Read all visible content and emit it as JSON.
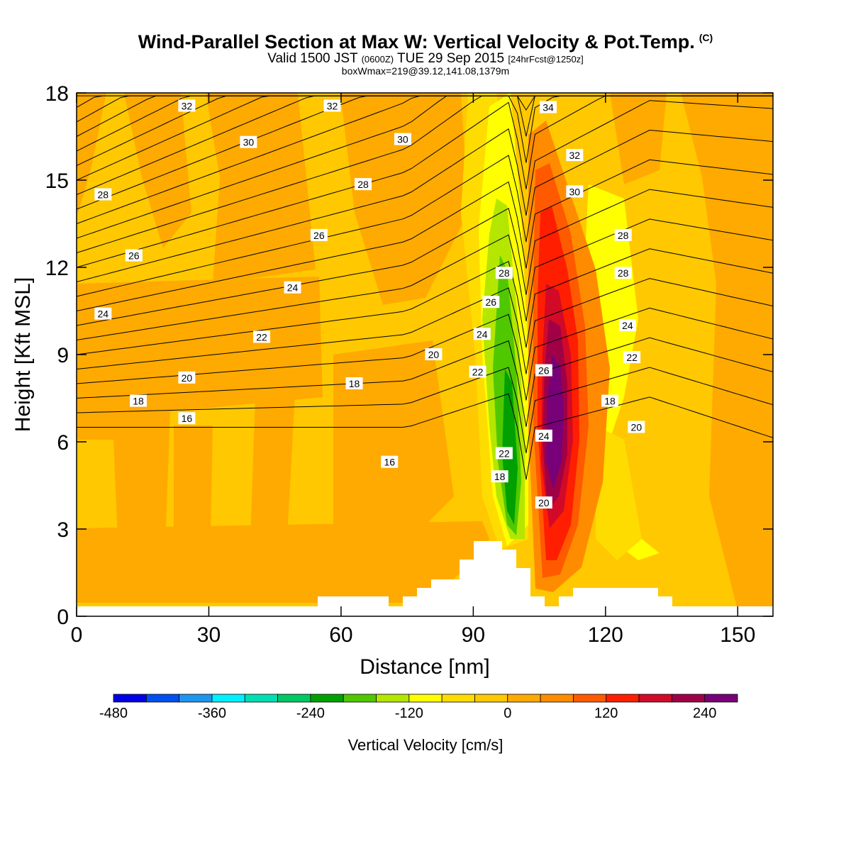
{
  "title": {
    "main": "Wind-Parallel Section at Max W: Vertical Velocity & Pot.Temp.",
    "copyright": "(C)",
    "valid_prefix": "Valid 1500 JST",
    "valid_utc": "(0600Z)",
    "valid_date": "TUE 29 Sep 2015",
    "forecast": "[24hrFcst@1250z]",
    "subtitle": "boxWmax=219@39.12,141.08,1379m"
  },
  "chart_data": {
    "type": "heatmap",
    "description_type": "vertical cross-section contour",
    "xlabel": "Distance [nm]",
    "ylabel": "Height [Kft MSL]",
    "xlim": [
      0,
      158
    ],
    "ylim": [
      0,
      18
    ],
    "x_ticks": [
      0,
      30,
      60,
      90,
      120,
      150
    ],
    "y_ticks": [
      0,
      3,
      6,
      9,
      12,
      15,
      18
    ],
    "colorbar": {
      "label": "Vertical Velocity [cm/s]",
      "tick_values": [
        -480,
        -360,
        -240,
        -120,
        0,
        120,
        240
      ],
      "bins": [
        -480,
        -440,
        -400,
        -360,
        -320,
        -280,
        -240,
        -200,
        -160,
        -120,
        -80,
        -40,
        0,
        40,
        80,
        120,
        160,
        200,
        240,
        280
      ],
      "colors": [
        "#0000e6",
        "#0050f0",
        "#1e96f0",
        "#00f0ff",
        "#00dfb4",
        "#00c864",
        "#00a000",
        "#50c800",
        "#b4e600",
        "#ffff00",
        "#ffdc00",
        "#ffc800",
        "#ffaa00",
        "#ff8c00",
        "#ff5a00",
        "#ff1e00",
        "#d20a28",
        "#a00046",
        "#780078"
      ]
    },
    "theta_contour_labels": [
      {
        "x": 25,
        "y": 17.55,
        "label": "32"
      },
      {
        "x": 58,
        "y": 17.55,
        "label": "32"
      },
      {
        "x": 107,
        "y": 17.5,
        "label": "34"
      },
      {
        "x": 39,
        "y": 16.3,
        "label": "30"
      },
      {
        "x": 74,
        "y": 16.4,
        "label": "30"
      },
      {
        "x": 113,
        "y": 15.85,
        "label": "32"
      },
      {
        "x": 6,
        "y": 14.5,
        "label": "28"
      },
      {
        "x": 65,
        "y": 14.85,
        "label": "28"
      },
      {
        "x": 113,
        "y": 14.6,
        "label": "30"
      },
      {
        "x": 55,
        "y": 13.1,
        "label": "26"
      },
      {
        "x": 124,
        "y": 13.1,
        "label": "28"
      },
      {
        "x": 13,
        "y": 12.4,
        "label": "26"
      },
      {
        "x": 97,
        "y": 11.8,
        "label": "28"
      },
      {
        "x": 124,
        "y": 11.8,
        "label": "28"
      },
      {
        "x": 49,
        "y": 11.3,
        "label": "24"
      },
      {
        "x": 94,
        "y": 10.8,
        "label": "26"
      },
      {
        "x": 6,
        "y": 10.4,
        "label": "24"
      },
      {
        "x": 125,
        "y": 10.0,
        "label": "24"
      },
      {
        "x": 92,
        "y": 9.7,
        "label": "24"
      },
      {
        "x": 42,
        "y": 9.6,
        "label": "22"
      },
      {
        "x": 81,
        "y": 9.0,
        "label": "20"
      },
      {
        "x": 106,
        "y": 8.45,
        "label": "26"
      },
      {
        "x": 91,
        "y": 8.4,
        "label": "22"
      },
      {
        "x": 126,
        "y": 8.9,
        "label": "22"
      },
      {
        "x": 25,
        "y": 8.2,
        "label": "20"
      },
      {
        "x": 63,
        "y": 8.0,
        "label": "18"
      },
      {
        "x": 14,
        "y": 7.4,
        "label": "18"
      },
      {
        "x": 121,
        "y": 7.4,
        "label": "18"
      },
      {
        "x": 127,
        "y": 6.5,
        "label": "20"
      },
      {
        "x": 25,
        "y": 6.8,
        "label": "16"
      },
      {
        "x": 106,
        "y": 6.2,
        "label": "24"
      },
      {
        "x": 97,
        "y": 5.6,
        "label": "22"
      },
      {
        "x": 71,
        "y": 5.3,
        "label": "16"
      },
      {
        "x": 96,
        "y": 4.8,
        "label": "18"
      },
      {
        "x": 106,
        "y": 3.9,
        "label": "20"
      }
    ]
  }
}
